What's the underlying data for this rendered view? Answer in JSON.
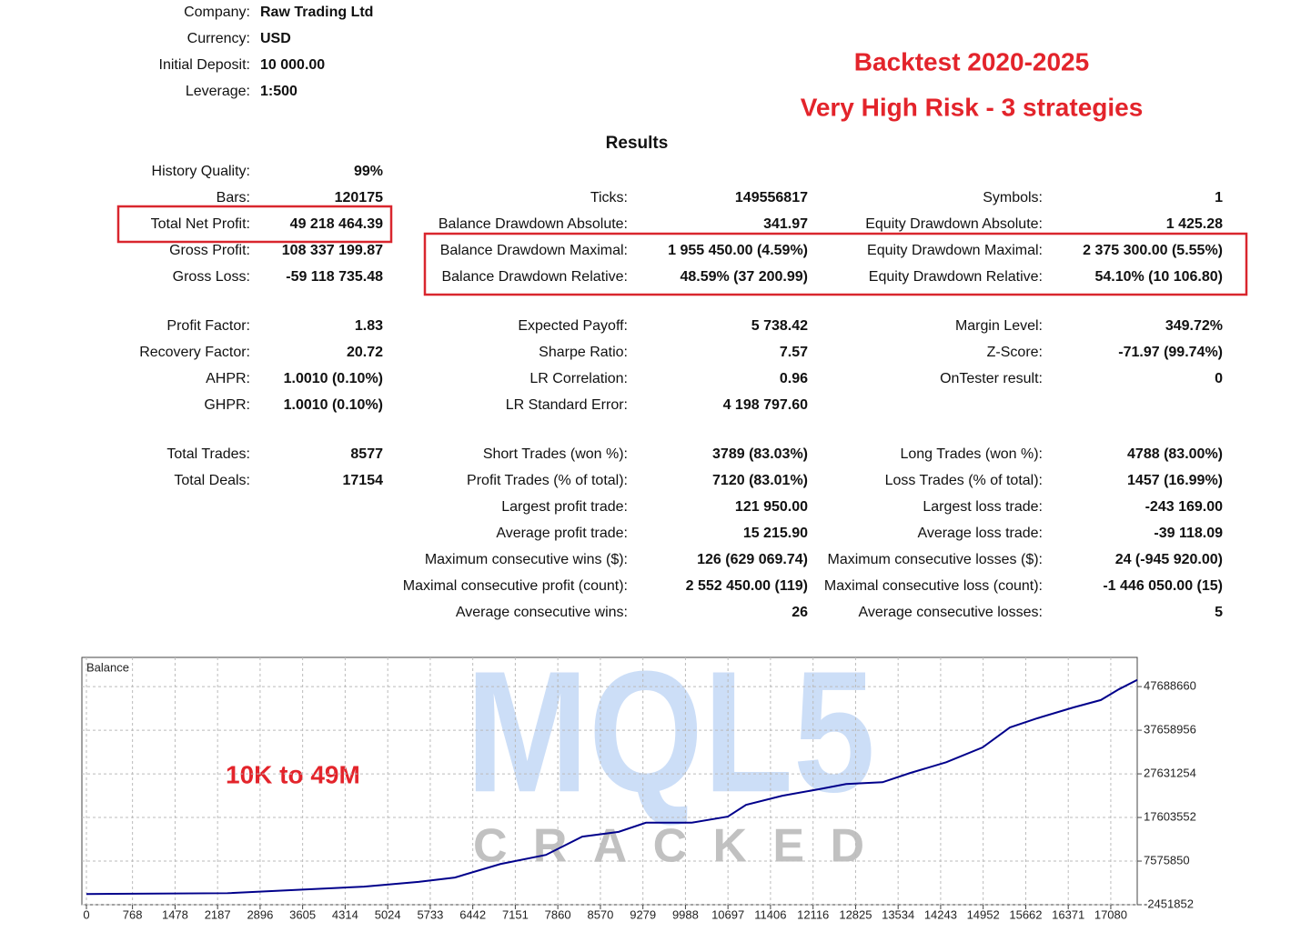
{
  "header": {
    "items": [
      {
        "label": "Company:",
        "value": "Raw Trading Ltd"
      },
      {
        "label": "Currency:",
        "value": "USD"
      },
      {
        "label": "Initial Deposit:",
        "value": "10 000.00"
      },
      {
        "label": "Leverage:",
        "value": "1:500"
      }
    ],
    "title": "Backtest 2020-2025",
    "subtitle": "Very High Risk - 3 strategies",
    "results": "Results"
  },
  "sections": [
    {
      "rows": [
        [
          {
            "label": "History Quality:",
            "value": "99%"
          },
          null,
          null
        ],
        [
          {
            "label": "Bars:",
            "value": "120175"
          },
          {
            "label": "Ticks:",
            "value": "149556817"
          },
          {
            "label": "Symbols:",
            "value": "1"
          }
        ],
        [
          {
            "label": "Total Net Profit:",
            "value": "49 218 464.39"
          },
          {
            "label": "Balance Drawdown Absolute:",
            "value": "341.97"
          },
          {
            "label": "Equity Drawdown Absolute:",
            "value": "1 425.28"
          }
        ],
        [
          {
            "label": "Gross Profit:",
            "value": "108 337 199.87"
          },
          {
            "label": "Balance Drawdown Maximal:",
            "value": "1 955 450.00 (4.59%)"
          },
          {
            "label": "Equity Drawdown Maximal:",
            "value": "2 375 300.00 (5.55%)"
          }
        ],
        [
          {
            "label": "Gross Loss:",
            "value": "-59 118 735.48"
          },
          {
            "label": "Balance Drawdown Relative:",
            "value": "48.59% (37 200.99)"
          },
          {
            "label": "Equity Drawdown Relative:",
            "value": "54.10% (10 106.80)"
          }
        ]
      ]
    },
    {
      "rows": [
        [
          {
            "label": "Profit Factor:",
            "value": "1.83"
          },
          {
            "label": "Expected Payoff:",
            "value": "5 738.42"
          },
          {
            "label": "Margin Level:",
            "value": "349.72%"
          }
        ],
        [
          {
            "label": "Recovery Factor:",
            "value": "20.72"
          },
          {
            "label": "Sharpe Ratio:",
            "value": "7.57"
          },
          {
            "label": "Z-Score:",
            "value": "-71.97 (99.74%)"
          }
        ],
        [
          {
            "label": "AHPR:",
            "value": "1.0010 (0.10%)"
          },
          {
            "label": "LR Correlation:",
            "value": "0.96"
          },
          {
            "label": "OnTester result:",
            "value": "0"
          }
        ],
        [
          {
            "label": "GHPR:",
            "value": "1.0010 (0.10%)"
          },
          {
            "label": "LR Standard Error:",
            "value": "4 198 797.60"
          },
          null
        ]
      ]
    },
    {
      "rows": [
        [
          {
            "label": "Total Trades:",
            "value": "8577"
          },
          {
            "label": "Short Trades (won %):",
            "value": "3789 (83.03%)"
          },
          {
            "label": "Long Trades (won %):",
            "value": "4788 (83.00%)"
          }
        ],
        [
          {
            "label": "Total Deals:",
            "value": "17154"
          },
          {
            "label": "Profit Trades (% of total):",
            "value": "7120 (83.01%)"
          },
          {
            "label": "Loss Trades (% of total):",
            "value": "1457 (16.99%)"
          }
        ],
        [
          null,
          {
            "label": "Largest profit trade:",
            "value": "121 950.00"
          },
          {
            "label": "Largest loss trade:",
            "value": "-243 169.00"
          }
        ],
        [
          null,
          {
            "label": "Average profit trade:",
            "value": "15 215.90"
          },
          {
            "label": "Average loss trade:",
            "value": "-39 118.09"
          }
        ],
        [
          null,
          {
            "label": "Maximum consecutive wins ($):",
            "value": "126 (629 069.74)"
          },
          {
            "label": "Maximum consecutive losses ($):",
            "value": "24 (-945 920.00)"
          }
        ],
        [
          null,
          {
            "label": "Maximal consecutive profit (count):",
            "value": "2 552 450.00 (119)"
          },
          {
            "label": "Maximal consecutive loss (count):",
            "value": "-1 446 050.00 (15)"
          }
        ],
        [
          null,
          {
            "label": "Average consecutive wins:",
            "value": "26"
          },
          {
            "label": "Average consecutive losses:",
            "value": "5"
          }
        ]
      ]
    }
  ],
  "watermark": {
    "text": "MQL5",
    "subtext": "CRACKED"
  },
  "chart_data": {
    "type": "line",
    "annotation": "10K to 49M",
    "x": [
      0,
      2351,
      4627,
      5537,
      6144,
      6902,
      7661,
      8268,
      8874,
      9330,
      10088,
      10695,
      10998,
      11605,
      12212,
      12667,
      13274,
      13729,
      14336,
      14942,
      15398,
      15853,
      16459,
      16914,
      17218,
      17521
    ],
    "series": [
      {
        "name": "Balance",
        "color": "#00008b",
        "values": [
          10000,
          200000,
          1700000,
          2800000,
          3800000,
          6900000,
          9000000,
          13200000,
          14300000,
          16400000,
          16400000,
          17800000,
          20500000,
          22600000,
          24100000,
          25300000,
          25700000,
          27800000,
          30300000,
          33700000,
          38300000,
          40400000,
          42900000,
          44600000,
          47100000,
          49228464
        ]
      }
    ],
    "xlim": [
      0,
      17521
    ],
    "xticks": [
      0,
      768,
      1478,
      2187,
      2896,
      3605,
      4314,
      5024,
      5733,
      6442,
      7151,
      7860,
      8570,
      9279,
      9988,
      10697,
      11406,
      12116,
      12825,
      13534,
      14243,
      14952,
      15662,
      16371,
      17080
    ],
    "ylim": [
      -2451852,
      54400000
    ],
    "yticks": [
      -2451852,
      7575850,
      17603552,
      27631254,
      37658956,
      47688660
    ],
    "grid": true
  }
}
